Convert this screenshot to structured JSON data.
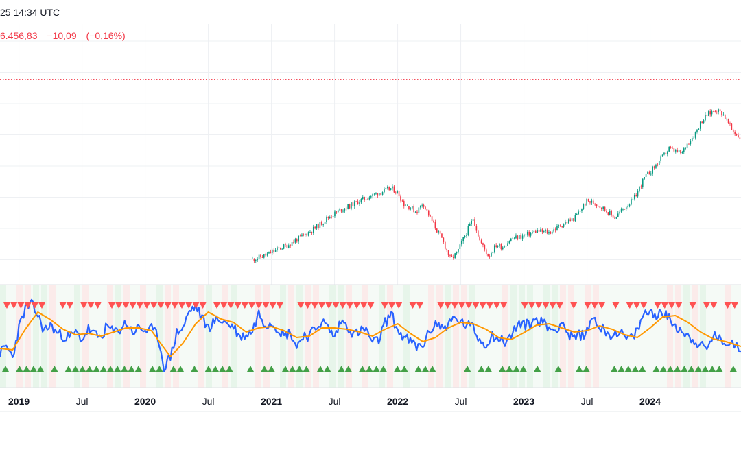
{
  "header": {
    "datetime": "25 14:34 UTC",
    "price": "6.456,83",
    "change": "−10,09",
    "change_pct": "(−0,16%)"
  },
  "colors": {
    "up": "#089981",
    "down": "#f23645",
    "oscillator": "#2962ff",
    "signal": "#ff9800",
    "buy_marker": "#43a047",
    "sell_marker": "#ff5252",
    "grid": "#eef0f3",
    "band": "#f5faf6"
  },
  "chart_data": [
    {
      "type": "line",
      "title": "",
      "xlabel": "",
      "ylabel": "",
      "x_range": [
        2018.85,
        2024.72
      ],
      "ylim": [
        3400,
        6700
      ],
      "reference_line": 6000,
      "x_ticks": [
        {
          "x": 2019.0,
          "label": "2019",
          "major": true
        },
        {
          "x": 2019.5,
          "label": "Jul",
          "major": false
        },
        {
          "x": 2020.0,
          "label": "2020",
          "major": true
        },
        {
          "x": 2020.5,
          "label": "Jul",
          "major": false
        },
        {
          "x": 2021.0,
          "label": "2021",
          "major": true
        },
        {
          "x": 2021.5,
          "label": "Jul",
          "major": false
        },
        {
          "x": 2022.0,
          "label": "2022",
          "major": true
        },
        {
          "x": 2022.5,
          "label": "Jul",
          "major": false
        },
        {
          "x": 2023.0,
          "label": "2023",
          "major": true
        },
        {
          "x": 2023.5,
          "label": "Jul",
          "major": false
        },
        {
          "x": 2024.0,
          "label": "2024",
          "major": true
        }
      ],
      "series": [
        {
          "name": "price",
          "x": [
            2020.85,
            2020.95,
            2021.05,
            2021.15,
            2021.25,
            2021.35,
            2021.45,
            2021.55,
            2021.65,
            2021.75,
            2021.85,
            2021.95,
            2022.0,
            2022.05,
            2022.1,
            2022.15,
            2022.2,
            2022.25,
            2022.3,
            2022.35,
            2022.42,
            2022.47,
            2022.55,
            2022.6,
            2022.65,
            2022.72,
            2022.78,
            2022.83,
            2022.9,
            2023.0,
            2023.1,
            2023.2,
            2023.3,
            2023.4,
            2023.5,
            2023.58,
            2023.65,
            2023.72,
            2023.8,
            2023.87,
            2023.95,
            2024.05,
            2024.15,
            2024.25,
            2024.3,
            2024.35,
            2024.4,
            2024.45,
            2024.52,
            2024.58,
            2024.65,
            2024.72
          ],
          "values": [
            3720,
            3770,
            3850,
            3920,
            4020,
            4120,
            4250,
            4350,
            4420,
            4500,
            4560,
            4620,
            4570,
            4420,
            4380,
            4320,
            4440,
            4270,
            4120,
            3980,
            3720,
            3800,
            4080,
            4240,
            3960,
            3760,
            3900,
            3880,
            3980,
            4020,
            4080,
            4060,
            4160,
            4240,
            4460,
            4420,
            4340,
            4250,
            4380,
            4480,
            4740,
            4920,
            5120,
            5060,
            5200,
            5300,
            5450,
            5550,
            5620,
            5560,
            5350,
            5250
          ]
        },
        {
          "name": "oscillator",
          "x": [
            2018.85,
            2018.9,
            2018.95,
            2019.0,
            2019.05,
            2019.1,
            2019.15,
            2019.2,
            2019.25,
            2019.3,
            2019.35,
            2019.4,
            2019.45,
            2019.5,
            2019.55,
            2019.6,
            2019.65,
            2019.7,
            2019.75,
            2019.8,
            2019.85,
            2019.9,
            2019.95,
            2020.0,
            2020.05,
            2020.1,
            2020.15,
            2020.2,
            2020.25,
            2020.3,
            2020.35,
            2020.4,
            2020.45,
            2020.5,
            2020.55,
            2020.6,
            2020.65,
            2020.7,
            2020.75,
            2020.8,
            2020.85,
            2020.9,
            2020.95,
            2021.0,
            2021.05,
            2021.1,
            2021.15,
            2021.2,
            2021.25,
            2021.3,
            2021.35,
            2021.4,
            2021.45,
            2021.5,
            2021.55,
            2021.6,
            2021.65,
            2021.7,
            2021.75,
            2021.8,
            2021.85,
            2021.9,
            2021.95,
            2022.0,
            2022.05,
            2022.1,
            2022.15,
            2022.2,
            2022.25,
            2022.3,
            2022.35,
            2022.4,
            2022.45,
            2022.5,
            2022.55,
            2022.6,
            2022.65,
            2022.7,
            2022.75,
            2022.8,
            2022.85,
            2022.9,
            2022.95,
            2023.0,
            2023.05,
            2023.1,
            2023.15,
            2023.2,
            2023.25,
            2023.3,
            2023.35,
            2023.4,
            2023.45,
            2023.5,
            2023.55,
            2023.6,
            2023.65,
            2023.7,
            2023.75,
            2023.8,
            2023.85,
            2023.9,
            2023.95,
            2024.0,
            2024.05,
            2024.1,
            2024.15,
            2024.2,
            2024.25,
            2024.3,
            2024.35,
            2024.4,
            2024.45,
            2024.5,
            2024.55,
            2024.6,
            2024.65,
            2024.72
          ],
          "values": [
            25,
            35,
            20,
            62,
            90,
            96,
            80,
            58,
            66,
            55,
            50,
            48,
            55,
            45,
            60,
            52,
            48,
            65,
            55,
            60,
            70,
            56,
            62,
            58,
            60,
            50,
            5,
            20,
            55,
            62,
            86,
            94,
            76,
            62,
            72,
            74,
            68,
            64,
            48,
            52,
            58,
            84,
            68,
            70,
            62,
            50,
            56,
            34,
            52,
            50,
            62,
            72,
            62,
            48,
            72,
            66,
            52,
            57,
            60,
            40,
            44,
            70,
            82,
            58,
            48,
            42,
            34,
            37,
            55,
            70,
            62,
            67,
            76,
            70,
            66,
            62,
            44,
            38,
            52,
            46,
            42,
            50,
            68,
            66,
            68,
            75,
            70,
            62,
            58,
            73,
            52,
            46,
            52,
            56,
            80,
            62,
            58,
            50,
            58,
            47,
            46,
            58,
            82,
            86,
            82,
            84,
            75,
            66,
            58,
            50,
            44,
            36,
            30,
            52,
            44,
            42,
            40,
            28
          ]
        },
        {
          "name": "signal",
          "x": [
            2018.85,
            2018.95,
            2019.05,
            2019.15,
            2019.25,
            2019.35,
            2019.45,
            2019.55,
            2019.65,
            2019.75,
            2019.85,
            2019.95,
            2020.05,
            2020.12,
            2020.2,
            2020.3,
            2020.4,
            2020.5,
            2020.6,
            2020.7,
            2020.8,
            2020.9,
            2021.0,
            2021.1,
            2021.2,
            2021.3,
            2021.4,
            2021.5,
            2021.6,
            2021.7,
            2021.8,
            2021.9,
            2022.0,
            2022.1,
            2022.2,
            2022.3,
            2022.4,
            2022.5,
            2022.6,
            2022.7,
            2022.8,
            2022.9,
            2023.0,
            2023.1,
            2023.2,
            2023.3,
            2023.4,
            2023.5,
            2023.6,
            2023.7,
            2023.8,
            2023.9,
            2024.0,
            2024.1,
            2024.2,
            2024.3,
            2024.4,
            2024.5,
            2024.6,
            2024.72
          ],
          "values": [
            32,
            30,
            60,
            85,
            74,
            60,
            52,
            54,
            50,
            56,
            62,
            62,
            58,
            40,
            20,
            40,
            68,
            85,
            75,
            70,
            56,
            62,
            64,
            58,
            48,
            50,
            62,
            62,
            60,
            56,
            50,
            60,
            68,
            54,
            42,
            48,
            62,
            70,
            68,
            60,
            48,
            45,
            55,
            66,
            68,
            62,
            56,
            58,
            65,
            60,
            52,
            48,
            62,
            78,
            80,
            70,
            56,
            46,
            42,
            35
          ]
        }
      ],
      "markers": {
        "sell": {
          "level": "top",
          "count": 76
        },
        "buy": {
          "level": "bottom",
          "count": 64
        }
      }
    }
  ]
}
